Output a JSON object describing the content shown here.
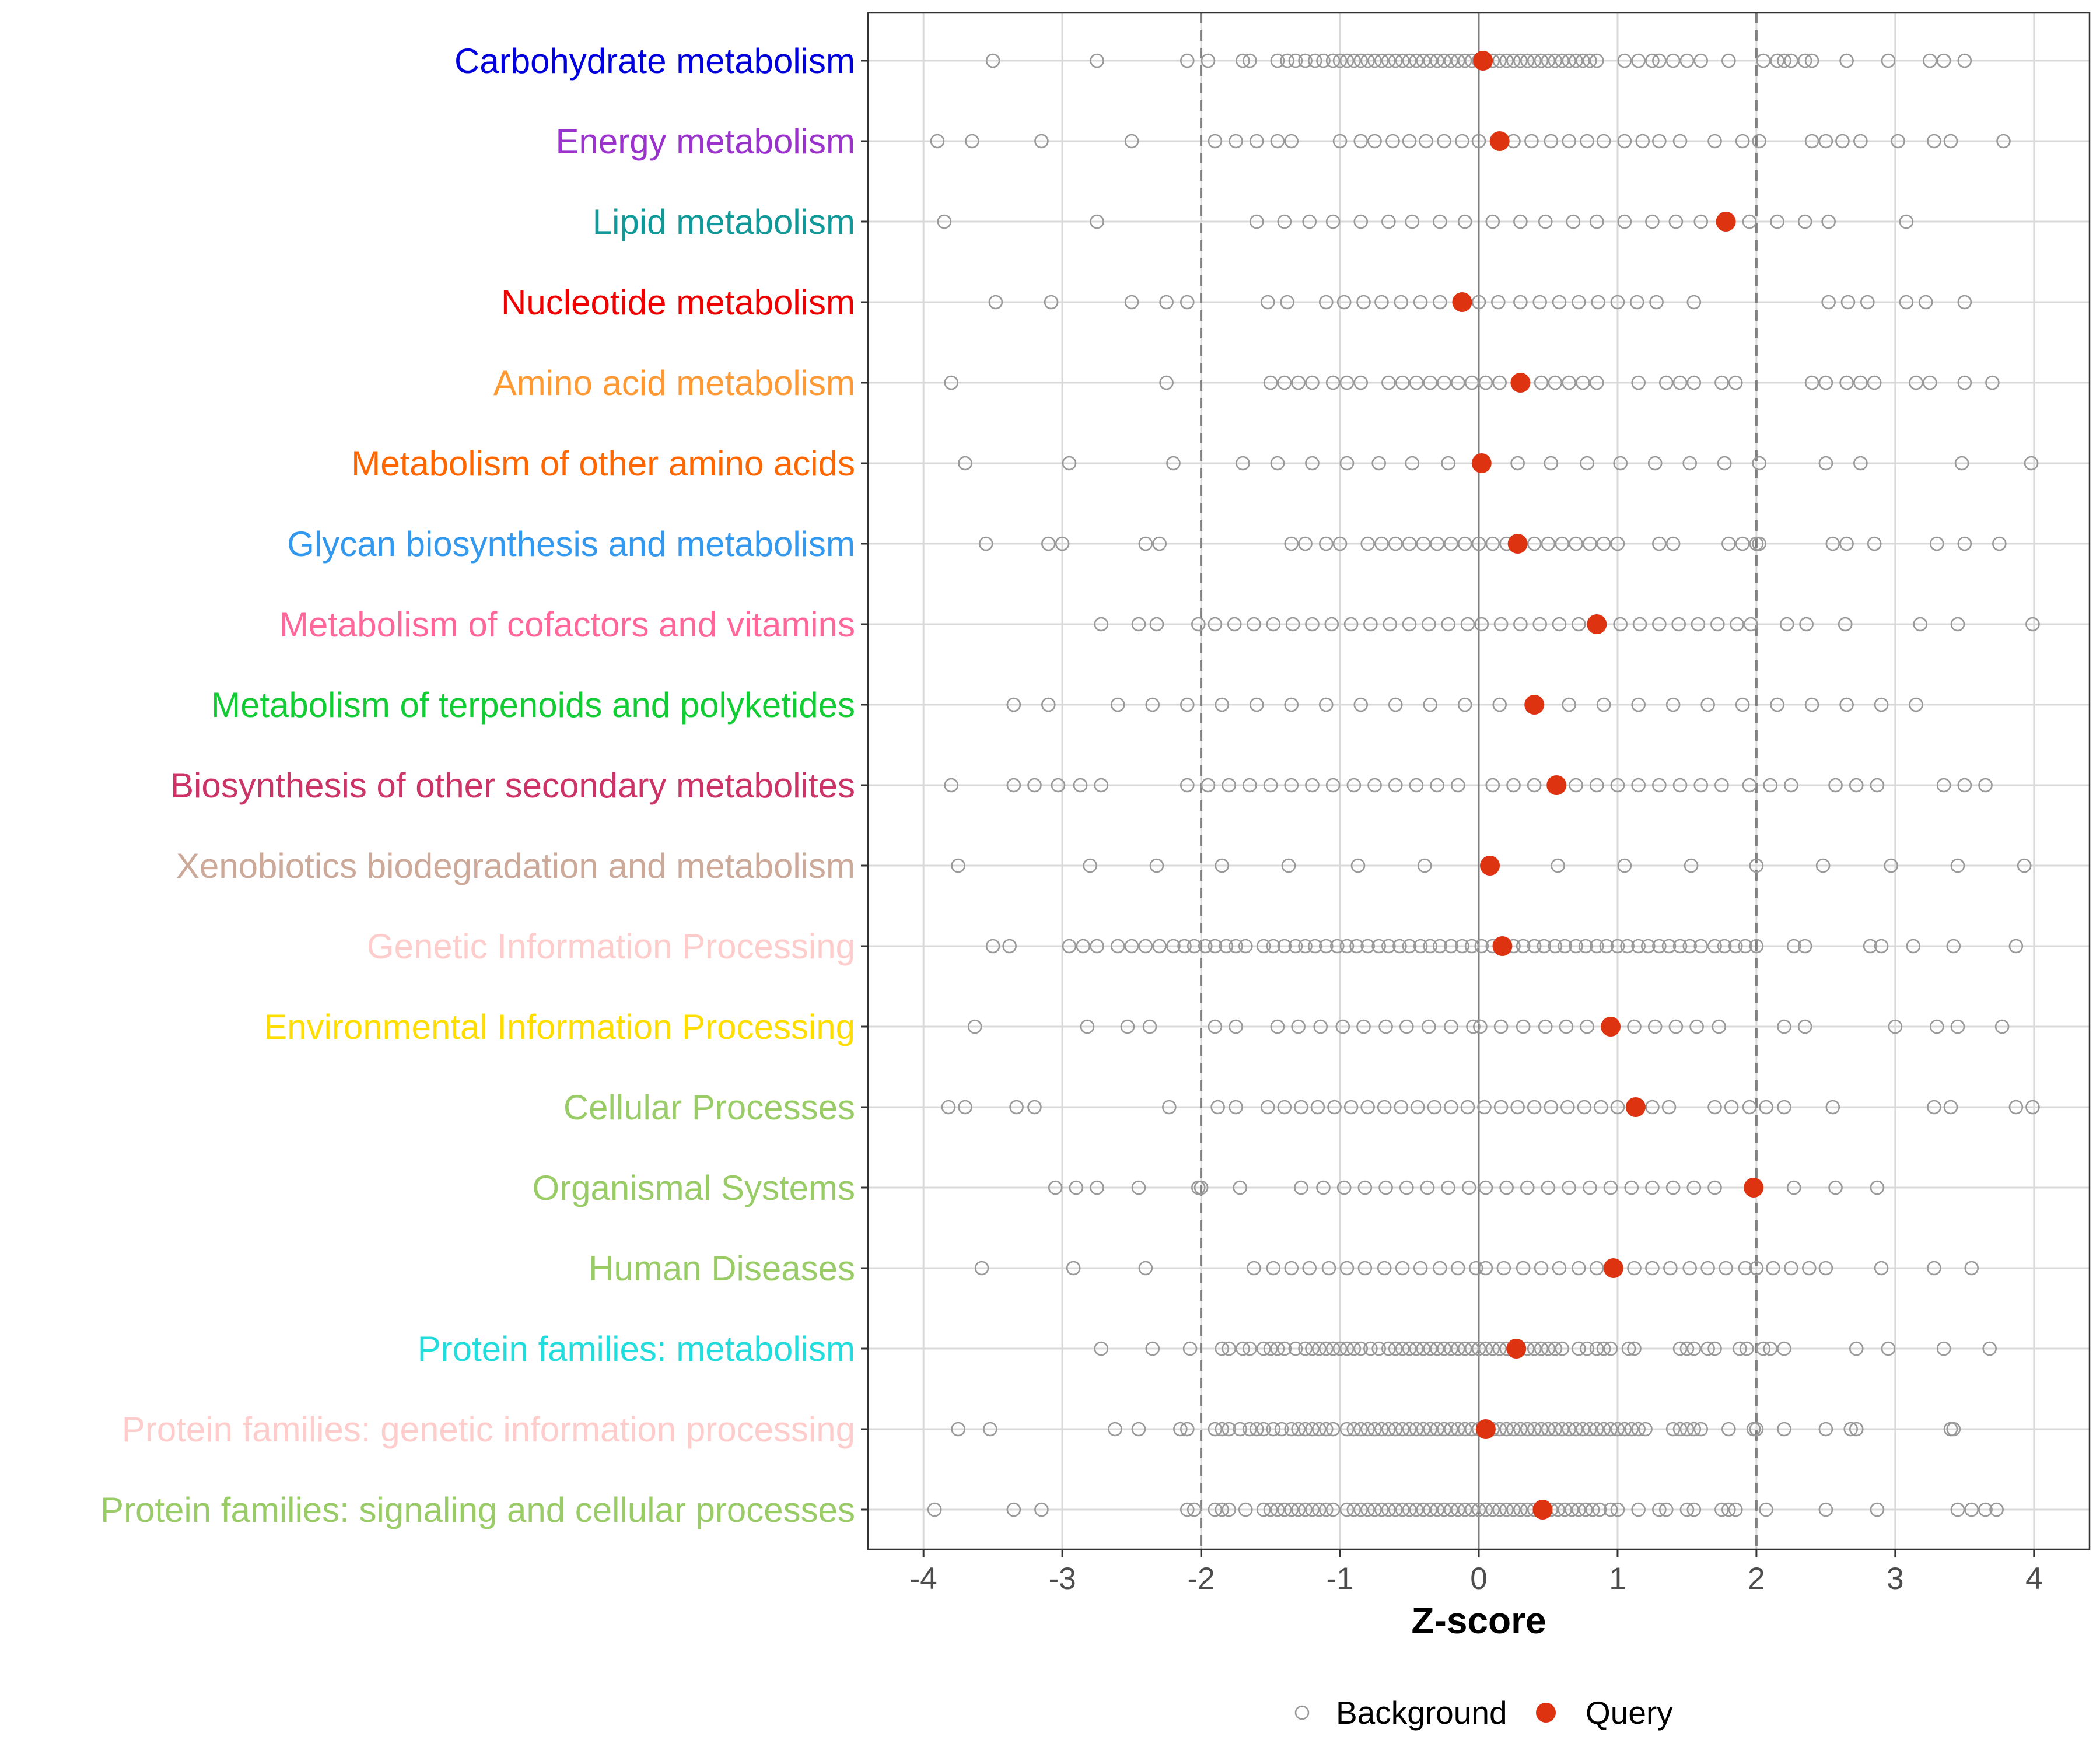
{
  "chart_data": {
    "type": "scatter",
    "xlabel": "Z-score",
    "xlim": [
      -4.4,
      4.4
    ],
    "x_ticks": [
      -4,
      -3,
      -2,
      -1,
      0,
      1,
      2,
      3,
      4
    ],
    "x_tick_labels": [
      "-4",
      "-3",
      "-2",
      "-1",
      "0",
      "1",
      "2",
      "3",
      "4"
    ],
    "reference_lines": {
      "solid": [
        0
      ],
      "dashed": [
        -2,
        2
      ]
    },
    "grid": true,
    "legend_position": "bottom",
    "legend": [
      {
        "name": "Background",
        "style": "open-circle",
        "color": "#999999"
      },
      {
        "name": "Query",
        "style": "filled-circle",
        "color": "#dd3311"
      }
    ],
    "categories": [
      {
        "label": "Carbohydrate metabolism",
        "color": "#0000dd",
        "query": 0.03,
        "background": [
          -3.5,
          -2.75,
          -2.1,
          -1.95,
          -1.7,
          -1.65,
          -1.45,
          -1.38,
          -1.32,
          -1.25,
          -1.18,
          -1.12,
          -1.05,
          -1.0,
          -0.95,
          -0.9,
          -0.85,
          -0.8,
          -0.75,
          -0.7,
          -0.65,
          -0.6,
          -0.55,
          -0.5,
          -0.45,
          -0.4,
          -0.35,
          -0.3,
          -0.25,
          -0.2,
          -0.15,
          -0.1,
          -0.05,
          0.0,
          0.05,
          0.1,
          0.15,
          0.2,
          0.25,
          0.3,
          0.35,
          0.4,
          0.45,
          0.5,
          0.55,
          0.6,
          0.65,
          0.7,
          0.75,
          0.8,
          0.85,
          1.05,
          1.15,
          1.25,
          1.3,
          1.4,
          1.5,
          1.6,
          1.8,
          2.05,
          2.15,
          2.2,
          2.25,
          2.35,
          2.4,
          2.65,
          2.95,
          3.25,
          3.35,
          3.5
        ]
      },
      {
        "label": "Energy metabolism",
        "color": "#9933cc",
        "query": 0.15,
        "background": [
          -3.9,
          -3.65,
          -3.15,
          -2.5,
          -1.9,
          -1.75,
          -1.6,
          -1.45,
          -1.35,
          -1.0,
          -0.85,
          -0.75,
          -0.62,
          -0.5,
          -0.38,
          -0.25,
          -0.12,
          0.0,
          0.25,
          0.38,
          0.52,
          0.65,
          0.78,
          0.9,
          1.05,
          1.18,
          1.3,
          1.45,
          1.7,
          1.9,
          2.02,
          2.4,
          2.5,
          2.62,
          2.75,
          3.02,
          3.28,
          3.4,
          3.78
        ]
      },
      {
        "label": "Lipid metabolism",
        "color": "#119999",
        "query": 1.78,
        "background": [
          -3.85,
          -2.75,
          -1.6,
          -1.4,
          -1.22,
          -1.05,
          -0.85,
          -0.65,
          -0.48,
          -0.28,
          -0.1,
          0.1,
          0.3,
          0.48,
          0.68,
          0.85,
          1.05,
          1.25,
          1.42,
          1.6,
          1.95,
          2.15,
          2.35,
          2.52,
          3.08
        ]
      },
      {
        "label": "Nucleotide metabolism",
        "color": "#ee0000",
        "query": -0.12,
        "background": [
          -3.48,
          -3.08,
          -2.5,
          -2.25,
          -2.1,
          -1.52,
          -1.38,
          -1.1,
          -0.97,
          -0.83,
          -0.7,
          -0.56,
          -0.42,
          -0.28,
          0.0,
          0.14,
          0.3,
          0.44,
          0.58,
          0.72,
          0.86,
          1.0,
          1.14,
          1.28,
          1.55,
          2.52,
          2.66,
          2.8,
          3.08,
          3.22,
          3.5
        ]
      },
      {
        "label": "Amino acid metabolism",
        "color": "#ff9933",
        "query": 0.3,
        "background": [
          -3.8,
          -2.25,
          -1.5,
          -1.4,
          -1.3,
          -1.2,
          -1.05,
          -0.95,
          -0.85,
          -0.65,
          -0.55,
          -0.45,
          -0.35,
          -0.25,
          -0.15,
          -0.05,
          0.05,
          0.15,
          0.45,
          0.55,
          0.65,
          0.75,
          0.85,
          1.15,
          1.35,
          1.45,
          1.55,
          1.75,
          1.85,
          2.4,
          2.5,
          2.65,
          2.75,
          2.85,
          3.15,
          3.25,
          3.5,
          3.7
        ]
      },
      {
        "label": "Metabolism of other amino acids",
        "color": "#ff6600",
        "query": 0.02,
        "background": [
          -3.7,
          -2.95,
          -2.2,
          -1.7,
          -1.45,
          -1.2,
          -0.95,
          -0.72,
          -0.48,
          -0.22,
          0.28,
          0.52,
          0.78,
          1.02,
          1.27,
          1.52,
          1.77,
          2.02,
          2.5,
          2.75,
          3.48,
          3.98
        ]
      },
      {
        "label": "Glycan biosynthesis and metabolism",
        "color": "#3399ee",
        "query": 0.28,
        "background": [
          -3.55,
          -3.1,
          -3.0,
          -2.4,
          -2.3,
          -1.35,
          -1.25,
          -1.1,
          -1.0,
          -0.8,
          -0.7,
          -0.6,
          -0.5,
          -0.4,
          -0.3,
          -0.2,
          -0.1,
          0.0,
          0.1,
          0.2,
          0.4,
          0.5,
          0.6,
          0.7,
          0.8,
          0.9,
          1.0,
          1.3,
          1.4,
          1.8,
          1.9,
          2.0,
          2.02,
          2.55,
          2.65,
          2.85,
          3.3,
          3.5,
          3.75
        ]
      },
      {
        "label": "Metabolism of cofactors and vitamins",
        "color": "#ff6699",
        "query": 0.85,
        "background": [
          -2.72,
          -2.45,
          -2.32,
          -2.02,
          -1.9,
          -1.76,
          -1.62,
          -1.48,
          -1.34,
          -1.2,
          -1.06,
          -0.92,
          -0.78,
          -0.64,
          -0.5,
          -0.36,
          -0.22,
          -0.08,
          0.02,
          0.16,
          0.3,
          0.44,
          0.58,
          0.72,
          1.02,
          1.16,
          1.3,
          1.44,
          1.58,
          1.72,
          1.86,
          1.96,
          2.22,
          2.36,
          2.64,
          3.18,
          3.45,
          3.99
        ]
      },
      {
        "label": "Metabolism of terpenoids and polyketides",
        "color": "#11cc33",
        "query": 0.4,
        "background": [
          -3.35,
          -3.1,
          -2.6,
          -2.35,
          -2.1,
          -1.85,
          -1.6,
          -1.35,
          -1.1,
          -0.85,
          -0.6,
          -0.35,
          -0.1,
          0.15,
          0.65,
          0.9,
          1.15,
          1.4,
          1.65,
          1.9,
          2.15,
          2.4,
          2.65,
          2.9,
          3.15
        ]
      },
      {
        "label": "Biosynthesis of other secondary metabolites",
        "color": "#cc3366",
        "query": 0.56,
        "background": [
          -3.8,
          -3.35,
          -3.2,
          -3.03,
          -2.87,
          -2.72,
          -2.1,
          -1.95,
          -1.8,
          -1.65,
          -1.5,
          -1.35,
          -1.2,
          -1.05,
          -0.9,
          -0.75,
          -0.6,
          -0.45,
          -0.3,
          -0.15,
          0.1,
          0.25,
          0.4,
          0.7,
          0.85,
          1.0,
          1.15,
          1.3,
          1.45,
          1.6,
          1.75,
          1.95,
          2.1,
          2.25,
          2.57,
          2.72,
          2.87,
          3.35,
          3.5,
          3.65
        ]
      },
      {
        "label": "Xenobiotics biodegradation and metabolism",
        "color": "#cca999",
        "query": 0.08,
        "background": [
          -3.75,
          -2.8,
          -2.32,
          -1.85,
          -1.37,
          -0.87,
          -0.39,
          0.57,
          1.05,
          1.53,
          2.0,
          2.48,
          2.97,
          3.45,
          3.93
        ]
      },
      {
        "label": "Genetic Information Processing",
        "color": "#ffcccc",
        "query": 0.17,
        "background": [
          -3.5,
          -3.38,
          -2.95,
          -2.85,
          -2.75,
          -2.6,
          -2.5,
          -2.4,
          -2.3,
          -2.2,
          -2.12,
          -2.05,
          -1.97,
          -1.9,
          -1.82,
          -1.75,
          -1.68,
          -1.55,
          -1.48,
          -1.4,
          -1.32,
          -1.25,
          -1.18,
          -1.1,
          -1.02,
          -0.95,
          -0.88,
          -0.8,
          -0.72,
          -0.65,
          -0.57,
          -0.5,
          -0.42,
          -0.35,
          -0.28,
          -0.2,
          -0.12,
          -0.05,
          0.02,
          0.1,
          0.25,
          0.32,
          0.4,
          0.47,
          0.55,
          0.62,
          0.7,
          0.77,
          0.85,
          0.92,
          1.0,
          1.07,
          1.15,
          1.22,
          1.3,
          1.37,
          1.45,
          1.52,
          1.6,
          1.7,
          1.77,
          1.85,
          1.92,
          2.0,
          2.27,
          2.35,
          2.82,
          2.9,
          3.13,
          3.42,
          3.87
        ]
      },
      {
        "label": "Environmental Information Processing",
        "color": "#ffdd00",
        "query": 0.95,
        "background": [
          -3.63,
          -2.82,
          -2.53,
          -2.37,
          -1.9,
          -1.75,
          -1.45,
          -1.3,
          -1.14,
          -0.98,
          -0.83,
          -0.67,
          -0.52,
          -0.36,
          -0.2,
          -0.04,
          0.01,
          0.16,
          0.32,
          0.48,
          0.63,
          0.78,
          1.12,
          1.27,
          1.42,
          1.57,
          1.73,
          2.2,
          2.35,
          3.0,
          3.3,
          3.45,
          3.77
        ]
      },
      {
        "label": "Cellular Processes",
        "color": "#99cc66",
        "query": 1.13,
        "background": [
          -3.82,
          -3.7,
          -3.33,
          -3.2,
          -2.23,
          -1.88,
          -1.75,
          -1.52,
          -1.4,
          -1.28,
          -1.16,
          -1.04,
          -0.92,
          -0.8,
          -0.68,
          -0.56,
          -0.44,
          -0.32,
          -0.2,
          -0.08,
          0.04,
          0.16,
          0.28,
          0.4,
          0.52,
          0.64,
          0.76,
          0.88,
          1.0,
          1.25,
          1.37,
          1.7,
          1.82,
          1.95,
          2.07,
          2.2,
          2.55,
          3.28,
          3.4,
          3.87,
          3.99
        ]
      },
      {
        "label": "Organismal Systems",
        "color": "#99cc66",
        "query": 1.98,
        "background": [
          -3.05,
          -2.9,
          -2.75,
          -2.45,
          -2.02,
          -2.0,
          -1.72,
          -1.28,
          -1.12,
          -0.97,
          -0.82,
          -0.67,
          -0.52,
          -0.37,
          -0.22,
          -0.07,
          0.05,
          0.2,
          0.35,
          0.5,
          0.65,
          0.8,
          0.95,
          1.1,
          1.25,
          1.4,
          1.55,
          1.7,
          2.27,
          2.57,
          2.87
        ]
      },
      {
        "label": "Human Diseases",
        "color": "#99cc66",
        "query": 0.97,
        "background": [
          -3.58,
          -2.92,
          -2.4,
          -1.62,
          -1.48,
          -1.35,
          -1.22,
          -1.08,
          -0.95,
          -0.82,
          -0.68,
          -0.55,
          -0.42,
          -0.28,
          -0.15,
          -0.02,
          0.05,
          0.18,
          0.32,
          0.45,
          0.58,
          0.72,
          0.85,
          1.12,
          1.25,
          1.38,
          1.52,
          1.65,
          1.78,
          1.92,
          2.0,
          2.12,
          2.25,
          2.38,
          2.5,
          2.9,
          3.28,
          3.55
        ]
      },
      {
        "label": "Protein families: metabolism",
        "color": "#22dddd",
        "query": 0.27,
        "background": [
          -2.72,
          -2.35,
          -2.08,
          -1.85,
          -1.8,
          -1.7,
          -1.65,
          -1.55,
          -1.5,
          -1.45,
          -1.4,
          -1.32,
          -1.25,
          -1.2,
          -1.15,
          -1.1,
          -1.05,
          -1.0,
          -0.95,
          -0.9,
          -0.85,
          -0.78,
          -0.72,
          -0.65,
          -0.6,
          -0.55,
          -0.5,
          -0.45,
          -0.4,
          -0.35,
          -0.3,
          -0.25,
          -0.2,
          -0.15,
          -0.1,
          -0.05,
          0.0,
          0.05,
          0.1,
          0.15,
          0.2,
          0.35,
          0.4,
          0.45,
          0.5,
          0.55,
          0.6,
          0.72,
          0.78,
          0.85,
          0.9,
          0.95,
          1.08,
          1.12,
          1.45,
          1.5,
          1.55,
          1.65,
          1.7,
          1.88,
          1.93,
          2.05,
          2.1,
          2.2,
          2.72,
          2.95,
          3.35,
          3.68
        ]
      },
      {
        "label": "Protein families: genetic information processing",
        "color": "#ffcccc",
        "query": 0.05,
        "background": [
          -3.75,
          -3.52,
          -2.62,
          -2.45,
          -2.15,
          -2.1,
          -1.9,
          -1.85,
          -1.8,
          -1.72,
          -1.65,
          -1.6,
          -1.55,
          -1.48,
          -1.42,
          -1.35,
          -1.3,
          -1.25,
          -1.2,
          -1.15,
          -1.1,
          -1.05,
          -0.95,
          -0.9,
          -0.85,
          -0.8,
          -0.75,
          -0.7,
          -0.65,
          -0.6,
          -0.55,
          -0.5,
          -0.45,
          -0.4,
          -0.35,
          -0.3,
          -0.25,
          -0.2,
          -0.15,
          -0.1,
          -0.05,
          0.0,
          0.1,
          0.15,
          0.2,
          0.25,
          0.3,
          0.35,
          0.4,
          0.45,
          0.5,
          0.55,
          0.6,
          0.65,
          0.7,
          0.75,
          0.8,
          0.85,
          0.9,
          0.95,
          1.0,
          1.05,
          1.1,
          1.15,
          1.2,
          1.4,
          1.45,
          1.5,
          1.55,
          1.6,
          1.8,
          1.98,
          2.0,
          2.2,
          2.5,
          2.68,
          2.72,
          3.4,
          3.42
        ]
      },
      {
        "label": "Protein families: signaling and cellular processes",
        "color": "#99cc66",
        "query": 0.46,
        "background": [
          -3.92,
          -3.35,
          -3.15,
          -2.1,
          -2.05,
          -1.9,
          -1.85,
          -1.8,
          -1.68,
          -1.55,
          -1.5,
          -1.45,
          -1.4,
          -1.35,
          -1.3,
          -1.25,
          -1.2,
          -1.15,
          -1.1,
          -1.05,
          -0.95,
          -0.9,
          -0.85,
          -0.8,
          -0.75,
          -0.7,
          -0.65,
          -0.6,
          -0.55,
          -0.5,
          -0.45,
          -0.4,
          -0.35,
          -0.3,
          -0.25,
          -0.2,
          -0.15,
          -0.1,
          -0.05,
          0.0,
          0.05,
          0.1,
          0.15,
          0.2,
          0.25,
          0.3,
          0.35,
          0.4,
          0.52,
          0.57,
          0.62,
          0.67,
          0.72,
          0.77,
          0.82,
          0.87,
          0.95,
          1.0,
          1.15,
          1.3,
          1.35,
          1.5,
          1.55,
          1.75,
          1.8,
          1.85,
          2.07,
          2.5,
          2.87,
          3.45,
          3.55,
          3.65,
          3.73
        ]
      }
    ]
  }
}
